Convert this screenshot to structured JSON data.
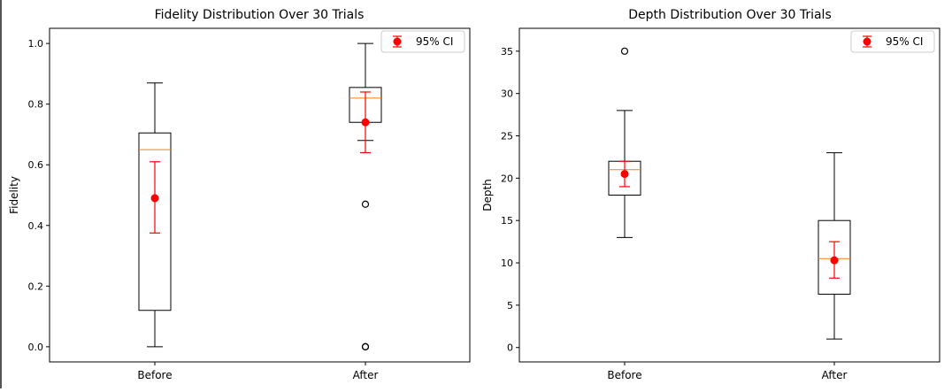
{
  "chart_data": [
    {
      "type": "box",
      "title": "Fidelity Distribution Over 30 Trials",
      "xlabel": "",
      "ylabel": "Fidelity",
      "categories": [
        "Before",
        "After"
      ],
      "ylim": [
        -0.05,
        1.05
      ],
      "yticks": [
        0.0,
        0.2,
        0.4,
        0.6,
        0.8,
        1.0
      ],
      "ytick_labels": [
        "0.0",
        "0.2",
        "0.4",
        "0.6",
        "0.8",
        "1.0"
      ],
      "boxes": [
        {
          "category": "Before",
          "whisker_low": 0.0,
          "q1": 0.12,
          "median": 0.65,
          "q3": 0.705,
          "whisker_high": 0.87,
          "outliers": []
        },
        {
          "category": "After",
          "whisker_low": 0.68,
          "q1": 0.74,
          "median": 0.82,
          "q3": 0.855,
          "whisker_high": 1.0,
          "outliers": [
            0.47,
            0.0,
            0.0
          ]
        }
      ],
      "ci": [
        {
          "category": "Before",
          "mean": 0.49,
          "low": 0.375,
          "high": 0.61
        },
        {
          "category": "After",
          "mean": 0.74,
          "low": 0.64,
          "high": 0.84
        }
      ],
      "legend": {
        "label": "95% CI",
        "placement": "top-right"
      },
      "grid": false
    },
    {
      "type": "box",
      "title": "Depth Distribution Over 30 Trials",
      "xlabel": "",
      "ylabel": "Depth",
      "categories": [
        "Before",
        "After"
      ],
      "ylim": [
        -1.7,
        37.7
      ],
      "yticks": [
        0,
        5,
        10,
        15,
        20,
        25,
        30,
        35
      ],
      "ytick_labels": [
        "0",
        "5",
        "10",
        "15",
        "20",
        "25",
        "30",
        "35"
      ],
      "boxes": [
        {
          "category": "Before",
          "whisker_low": 13,
          "q1": 18,
          "median": 21,
          "q3": 22,
          "whisker_high": 28,
          "outliers": [
            35
          ]
        },
        {
          "category": "After",
          "whisker_low": 1,
          "q1": 6.3,
          "median": 10.5,
          "q3": 15,
          "whisker_high": 23,
          "outliers": []
        }
      ],
      "ci": [
        {
          "category": "Before",
          "mean": 20.5,
          "low": 19.0,
          "high": 22.0
        },
        {
          "category": "After",
          "mean": 10.3,
          "low": 8.2,
          "high": 12.5
        }
      ],
      "legend": {
        "label": "95% CI",
        "placement": "top-right"
      },
      "grid": false
    }
  ],
  "colors": {
    "box": "#000000",
    "median": "#ff7f0e",
    "ci": "#ff0000",
    "background": "#ffffff"
  }
}
